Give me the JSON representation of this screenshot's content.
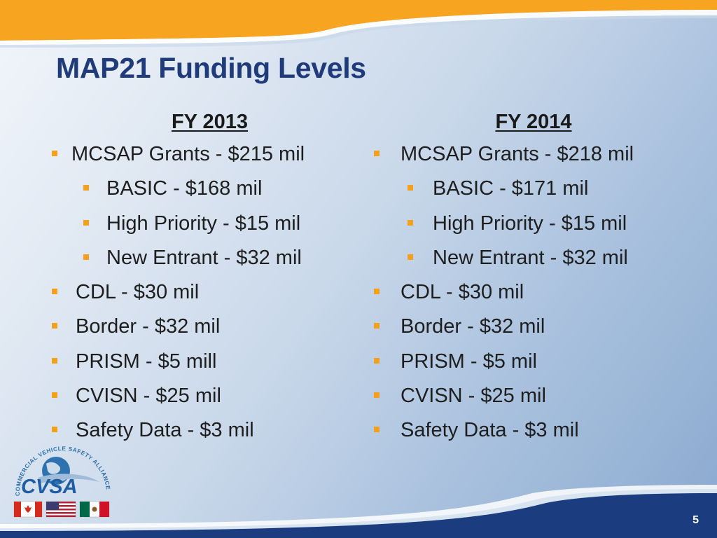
{
  "slide": {
    "title": "MAP21 Funding Levels",
    "page_number": "5",
    "colors": {
      "title": "#1f3b7a",
      "bullet": "#f4a01b",
      "top_band": "#f7a521",
      "bottom_band": "#1b3c7e"
    }
  },
  "columns": [
    {
      "heading": "FY 2013",
      "items": [
        {
          "level": 1,
          "text": "MCSAP Grants - $215 mil"
        },
        {
          "level": 2,
          "text": "BASIC - $168 mil"
        },
        {
          "level": 2,
          "text": "High Priority - $15 mil"
        },
        {
          "level": 2,
          "text": "New Entrant - $32 mil"
        },
        {
          "level": 1,
          "text": "CDL - $30 mil"
        },
        {
          "level": 1,
          "text": "Border - $32 mil"
        },
        {
          "level": 1,
          "text": "PRISM - $5 mill"
        },
        {
          "level": 1,
          "text": "CVISN - $25 mil"
        },
        {
          "level": 1,
          "text": "Safety Data - $3 mil"
        }
      ]
    },
    {
      "heading": "FY 2014",
      "items": [
        {
          "level": 1,
          "text": "MCSAP Grants - $218 mil"
        },
        {
          "level": 2,
          "text": "BASIC - $171 mil"
        },
        {
          "level": 2,
          "text": "High Priority - $15 mil"
        },
        {
          "level": 2,
          "text": "New Entrant - $32 mil"
        },
        {
          "level": 1,
          "text": "CDL - $30 mil"
        },
        {
          "level": 1,
          "text": "Border - $32 mil"
        },
        {
          "level": 1,
          "text": "PRISM - $5 mil"
        },
        {
          "level": 1,
          "text": "CVISN - $25 mil"
        },
        {
          "level": 1,
          "text": "Safety Data - $3 mil"
        }
      ]
    }
  ],
  "logo": {
    "arc_text": "COMMERCIAL VEHICLE SAFETY ALLIANCE",
    "wordmark": "CVSA",
    "flags": [
      "canada-flag",
      "usa-flag",
      "mexico-flag"
    ]
  }
}
